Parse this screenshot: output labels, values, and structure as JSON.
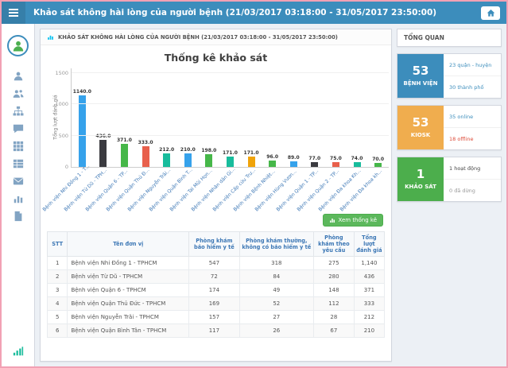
{
  "topbar": {
    "title": "Khảo sát không hài lòng của người bệnh (21/03/2017 03:18:00 - 31/05/2017 23:50:00)"
  },
  "sidebar": {
    "icons": [
      "user",
      "users",
      "sitemap",
      "comment",
      "grid",
      "table",
      "envelope",
      "chart",
      "file"
    ],
    "bottom_icon": "signal"
  },
  "panel": {
    "header": "KHẢO SÁT KHÔNG HÀI LÒNG CỦA NGƯỜI BỆNH (21/03/2017 03:18:00 - 31/05/2017 23:50:00)",
    "view_stats_button": "Xem thống kê"
  },
  "chart_data": {
    "type": "bar",
    "title": "Thống kê khảo sát",
    "ylabel": "Tổng lượt đánh giá",
    "ylim": [
      0,
      1500
    ],
    "yticks": [
      0,
      500,
      1000,
      1500
    ],
    "categories": [
      "Bệnh viện Nhi Đồng 1 - T...",
      "Bệnh viện Từ Dũ - TPH...",
      "Bệnh viện Quận 6 - TP...",
      "Bệnh viện Quận Thủ Đ...",
      "Bệnh viện Nguyễn Trãi...",
      "Bệnh viện Quận Bình T...",
      "Bệnh viện Tai Mũi Họn...",
      "Bệnh viện Nhân dân Gi...",
      "Bệnh viện Cấp cứu Trư...",
      "Bệnh viện Bệnh Nhiệt...",
      "Bệnh viện Hùng Vươn...",
      "Bệnh viện Quận 1 - TP...",
      "Bệnh viện Quận 2 - TP...",
      "Bệnh viện Đa khoa Kh...",
      "Bệnh viện Đa khoa kh..."
    ],
    "values": [
      1140,
      436,
      371,
      333,
      212,
      210,
      198,
      171,
      171,
      96,
      89,
      77,
      75,
      74,
      70
    ],
    "value_labels": [
      "1140.0",
      "436.0",
      "371.0",
      "333.0",
      "212.0",
      "210.0",
      "198.0",
      "171.0",
      "171.0",
      "96.0",
      "89.0",
      "77.0",
      "75.0",
      "74.0",
      "70.0"
    ],
    "bar_colors": [
      "#36a2eb",
      "#3b3b40",
      "#46b749",
      "#e8604c",
      "#18bc9c",
      "#36a2eb",
      "#46b749",
      "#18bc9c",
      "#f0a30a",
      "#46b749",
      "#36a2eb",
      "#3b3b40",
      "#e8604c",
      "#18bc9c",
      "#46b749"
    ]
  },
  "table": {
    "headers": [
      "STT",
      "Tên đơn vị",
      "Phòng khám bảo hiểm y tế",
      "Phòng khám thường, không có bảo hiểm y tế",
      "Phòng khám theo yêu cầu",
      "Tổng lượt đánh giá"
    ],
    "rows": [
      [
        "1",
        "Bệnh viện Nhi Đồng 1 - TPHCM",
        "547",
        "318",
        "275",
        "1,140"
      ],
      [
        "2",
        "Bệnh viện Từ Dũ - TPHCM",
        "72",
        "84",
        "280",
        "436"
      ],
      [
        "3",
        "Bệnh viện Quận 6 - TPHCM",
        "174",
        "49",
        "148",
        "371"
      ],
      [
        "4",
        "Bệnh viện Quận Thủ Đức - TPHCM",
        "169",
        "52",
        "112",
        "333"
      ],
      [
        "5",
        "Bệnh viện Nguyễn Trãi - TPHCM",
        "157",
        "27",
        "28",
        "212"
      ],
      [
        "6",
        "Bệnh viện Quận Bình Tân - TPHCM",
        "117",
        "26",
        "67",
        "210"
      ]
    ]
  },
  "overview": {
    "title": "TỔNG QUAN",
    "cards": [
      {
        "value": "53",
        "label": "BỆNH VIỆN",
        "color": "#3c8dbc",
        "lines": [
          {
            "text": "23 quận - huyện",
            "color": "#3c8dbc"
          },
          {
            "text": "30 thành phố",
            "color": "#3c8dbc"
          }
        ]
      },
      {
        "value": "53",
        "label": "KIOSK",
        "color": "#f0ad4e",
        "lines": [
          {
            "text": "35 online",
            "color": "#3c8dbc"
          },
          {
            "text": "18 offline",
            "color": "#dd4b39"
          }
        ]
      },
      {
        "value": "1",
        "label": "KHẢO SÁT",
        "color": "#4cae4c",
        "lines": [
          {
            "text": "1 hoạt động",
            "color": "#444444"
          },
          {
            "text": "0 đã dừng",
            "color": "#999999"
          }
        ]
      }
    ]
  }
}
